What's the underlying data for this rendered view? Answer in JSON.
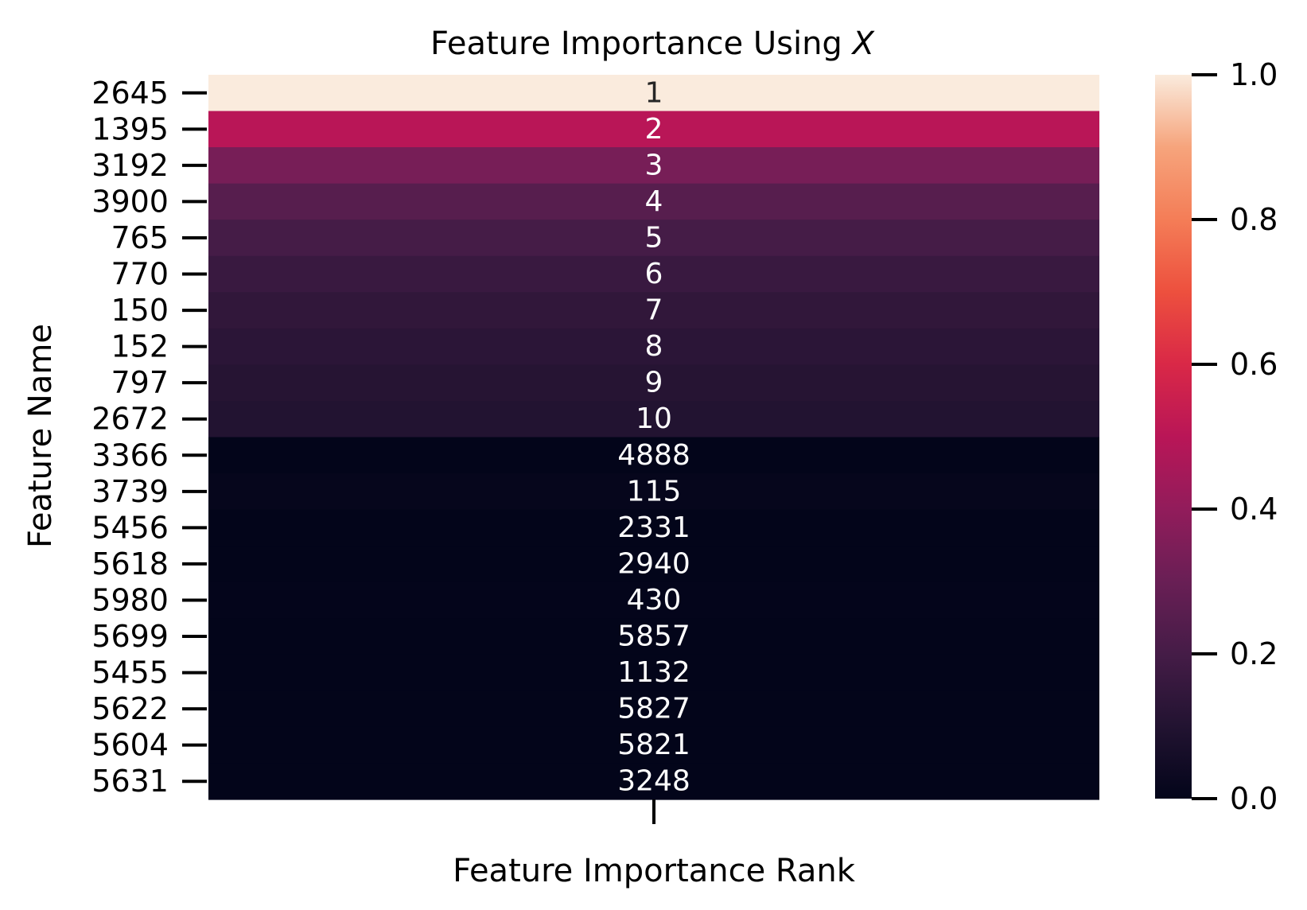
{
  "chart_data": {
    "type": "heatmap",
    "title_text": "Feature Importance Using ",
    "title_symbol": "X",
    "xlabel": "Feature Importance Rank",
    "ylabel": "Feature Name",
    "row_labels": [
      "2645",
      "1395",
      "3192",
      "3900",
      "765",
      "770",
      "150",
      "152",
      "797",
      "2672",
      "3366",
      "3739",
      "5456",
      "5618",
      "5980",
      "5699",
      "5455",
      "5622",
      "5604",
      "5631"
    ],
    "annotations": [
      "1",
      "2",
      "3",
      "4",
      "5",
      "6",
      "7",
      "8",
      "9",
      "10",
      "4888",
      "115",
      "2331",
      "2940",
      "430",
      "5857",
      "1132",
      "5827",
      "5821",
      "3248"
    ],
    "values": [
      1.0,
      0.5,
      0.3333,
      0.25,
      0.2,
      0.1667,
      0.1429,
      0.125,
      0.1111,
      0.1,
      0.0002,
      0.0087,
      0.0004,
      0.0003,
      0.0023,
      0.0002,
      0.0009,
      0.0002,
      0.0002,
      0.0003
    ],
    "colorbar": {
      "range": [
        0.0,
        1.0
      ],
      "ticks": [
        "0.0",
        "0.2",
        "0.4",
        "0.6",
        "0.8",
        "1.0"
      ]
    },
    "colormap": "rocket"
  }
}
